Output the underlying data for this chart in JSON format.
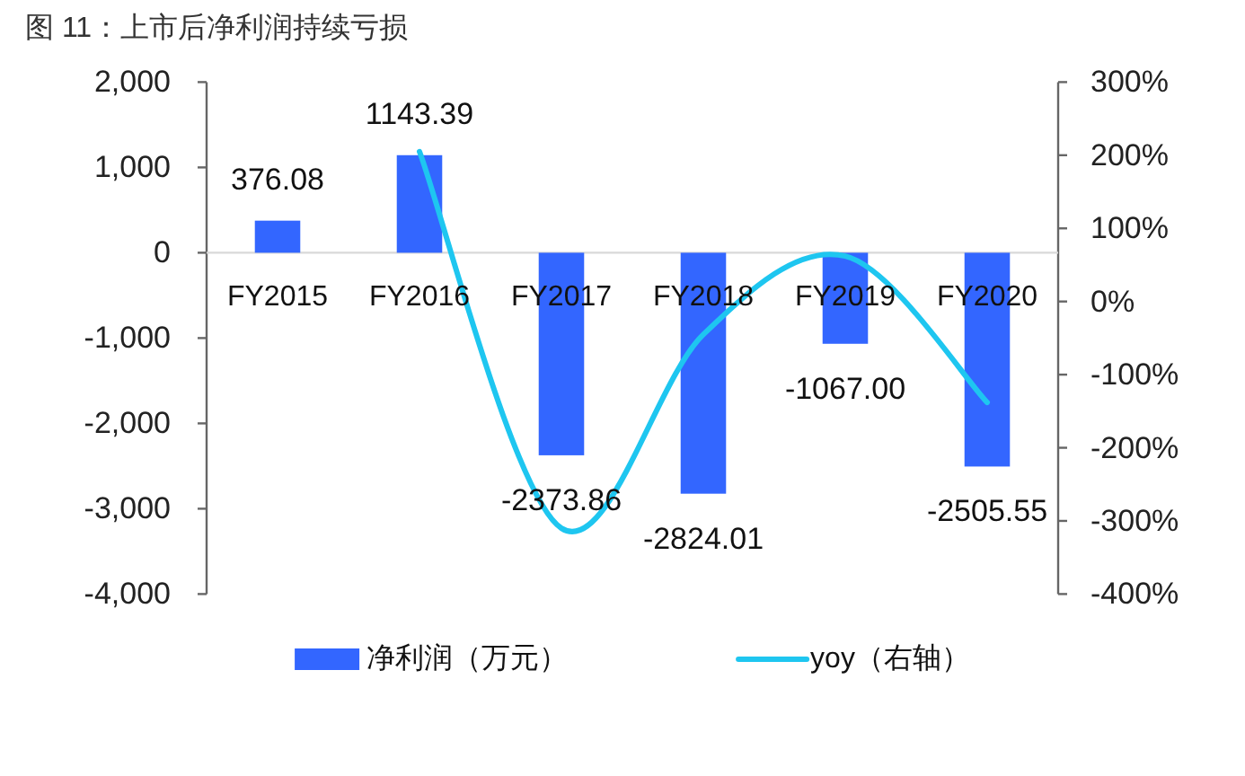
{
  "chart_data": {
    "type": "bar",
    "title": "图 11：上市后净利润持续亏损",
    "categories": [
      "FY2015",
      "FY2016",
      "FY2017",
      "FY2018",
      "FY2019",
      "FY2020"
    ],
    "series": [
      {
        "name": "净利润（万元）",
        "type": "bar",
        "color": "#3366ff",
        "values": [
          376.08,
          1143.39,
          -2373.86,
          -2824.01,
          -1067.0,
          -2505.55
        ],
        "value_labels": [
          "376.08",
          "1143.39",
          "-2373.86",
          "-2824.01",
          "-1067.00",
          "-2505.55"
        ]
      },
      {
        "name": "yoy（右轴）",
        "type": "line",
        "axis": "y2",
        "color": "#1ec6f0",
        "values": [
          null,
          205,
          -310,
          -45,
          62,
          -138
        ]
      }
    ],
    "ylim": [
      -4000,
      2000
    ],
    "yticks": [
      {
        "value": 2000,
        "label": "2,000"
      },
      {
        "value": 1000,
        "label": "1,000"
      },
      0,
      {
        "value": -1000,
        "label": "-1,000"
      },
      {
        "value": -2000,
        "label": "-2,000"
      },
      {
        "value": -3000,
        "label": "-3,000"
      },
      {
        "value": -4000,
        "label": "-4,000"
      }
    ],
    "y2lim": [
      -400,
      300
    ],
    "y2ticks": [
      {
        "value": 300,
        "label": "300%"
      },
      {
        "value": 200,
        "label": "200%"
      },
      {
        "value": 100,
        "label": "100%"
      },
      {
        "value": 0,
        "label": "0%"
      },
      {
        "value": -100,
        "label": "-100%"
      },
      {
        "value": -200,
        "label": "-200%"
      },
      {
        "value": -300,
        "label": "-300%"
      },
      {
        "value": -400,
        "label": "-400%"
      }
    ],
    "grid": false,
    "legend": "bottom"
  }
}
